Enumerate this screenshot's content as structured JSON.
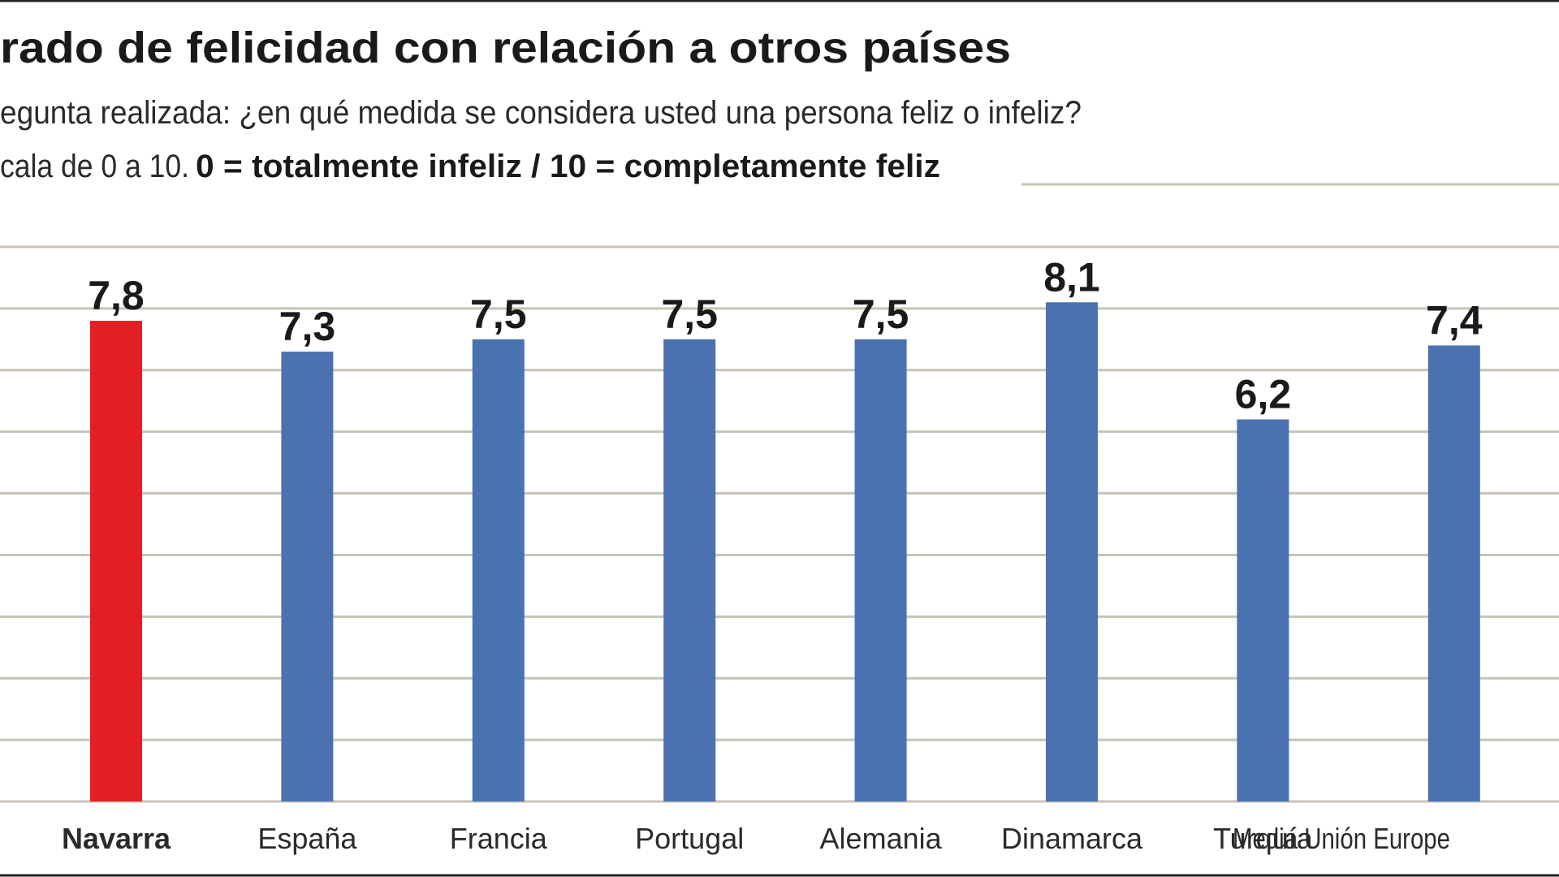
{
  "chart_data": {
    "type": "bar",
    "title": "rado de felicidad con relación a otros países",
    "subtitle": "egunta realizada: ¿en qué medida se considera usted una persona feliz o infeliz?",
    "note": "cala de 0 a 10.",
    "note_bold": "0 = totalmente infeliz / 10 = completamente feliz",
    "categories": [
      "Navarra",
      "España",
      "Francia",
      "Portugal",
      "Alemania",
      "Dinamarca",
      "Turquía",
      "Media Unión Europe"
    ],
    "values": [
      7.8,
      7.3,
      7.5,
      7.5,
      7.5,
      8.1,
      6.2,
      7.4
    ],
    "value_labels": [
      "7,8",
      "7,3",
      "7,5",
      "7,5",
      "7,5",
      "8,1",
      "6,2",
      "7,4"
    ],
    "colors": [
      "#e31e24",
      "#4a72b0",
      "#4a72b0",
      "#4a72b0",
      "#4a72b0",
      "#4a72b0",
      "#4a72b0",
      "#4a72b0"
    ],
    "ylim": [
      0,
      9
    ],
    "yticks": [
      0,
      1,
      2,
      3,
      4,
      5,
      6,
      7,
      8,
      9
    ],
    "grid": true
  }
}
